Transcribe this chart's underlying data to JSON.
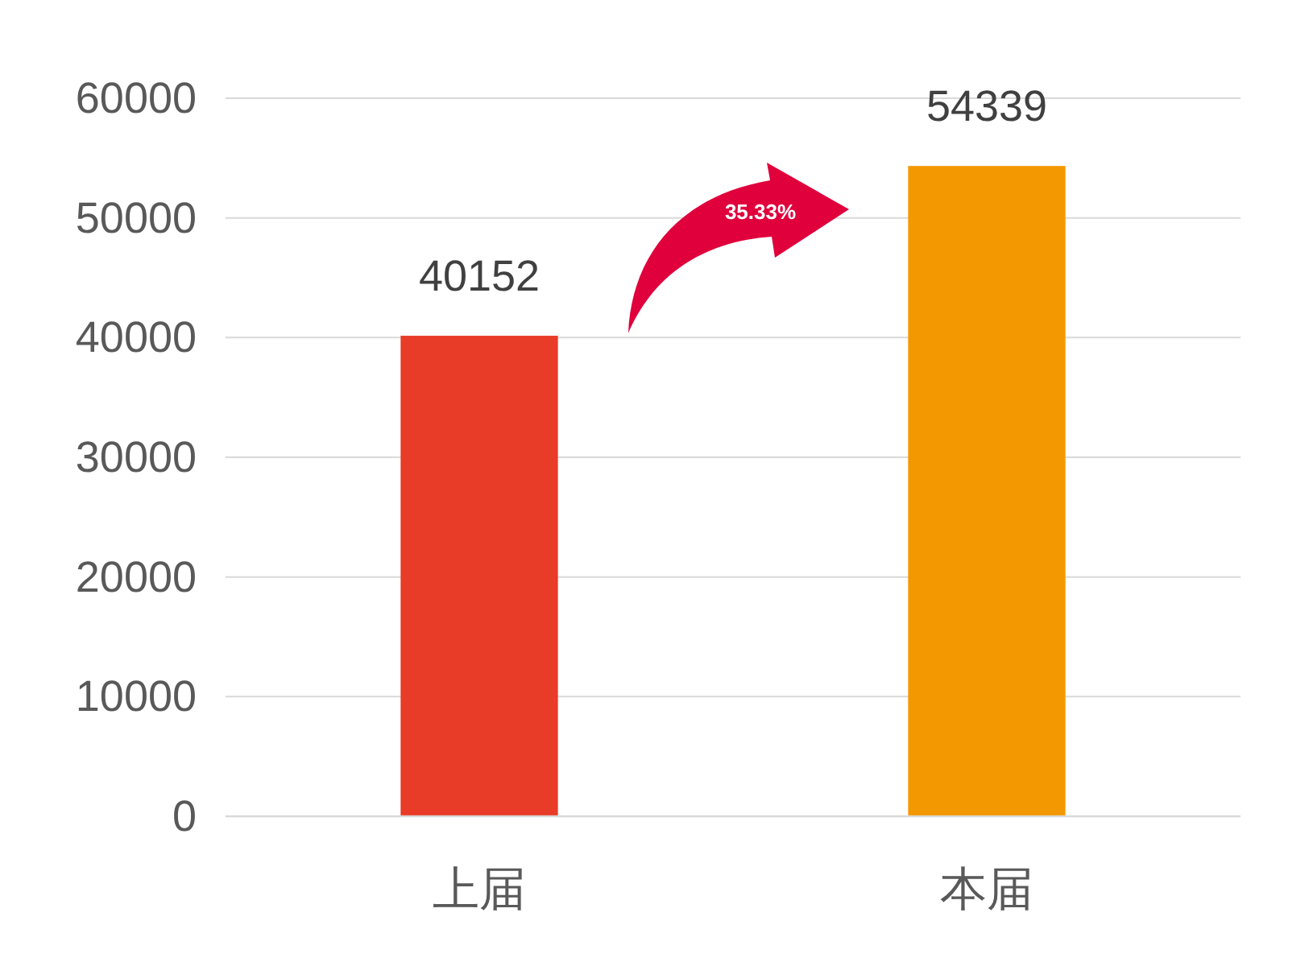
{
  "chart_data": {
    "type": "bar",
    "categories": [
      "上届",
      "本届"
    ],
    "values": [
      40152,
      54339
    ],
    "colors": [
      "#e83b28",
      "#f39800"
    ],
    "ylim": [
      0,
      60000
    ],
    "yticks": [
      0,
      10000,
      20000,
      30000,
      40000,
      50000,
      60000
    ],
    "grid": "y",
    "data_labels": true,
    "annotations": [
      "35.33%"
    ]
  }
}
